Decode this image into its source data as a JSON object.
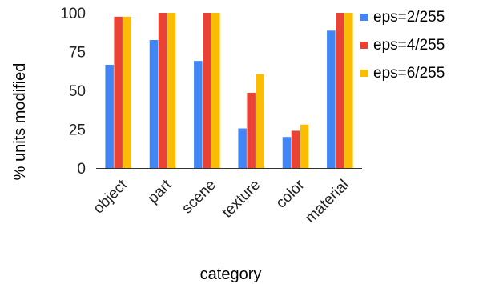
{
  "chart_data": {
    "type": "bar",
    "title": "",
    "xlabel": "category",
    "ylabel": "% units modified",
    "ylim": [
      0,
      100
    ],
    "yticks": [
      0,
      25,
      50,
      75,
      100
    ],
    "grid": false,
    "legend_position": "top-right",
    "categories": [
      "object",
      "part",
      "scene",
      "texture",
      "color",
      "material"
    ],
    "series": [
      {
        "name": "eps=2/255",
        "color": "#4285f4",
        "values": [
          66.5,
          82.5,
          69,
          25.5,
          20,
          88.5
        ]
      },
      {
        "name": "eps=4/255",
        "color": "#ea4335",
        "values": [
          97.5,
          100,
          100,
          48.5,
          24,
          100
        ]
      },
      {
        "name": "eps=6/255",
        "color": "#fbbc04",
        "values": [
          97.5,
          100,
          100,
          60.5,
          28,
          100
        ]
      }
    ]
  }
}
